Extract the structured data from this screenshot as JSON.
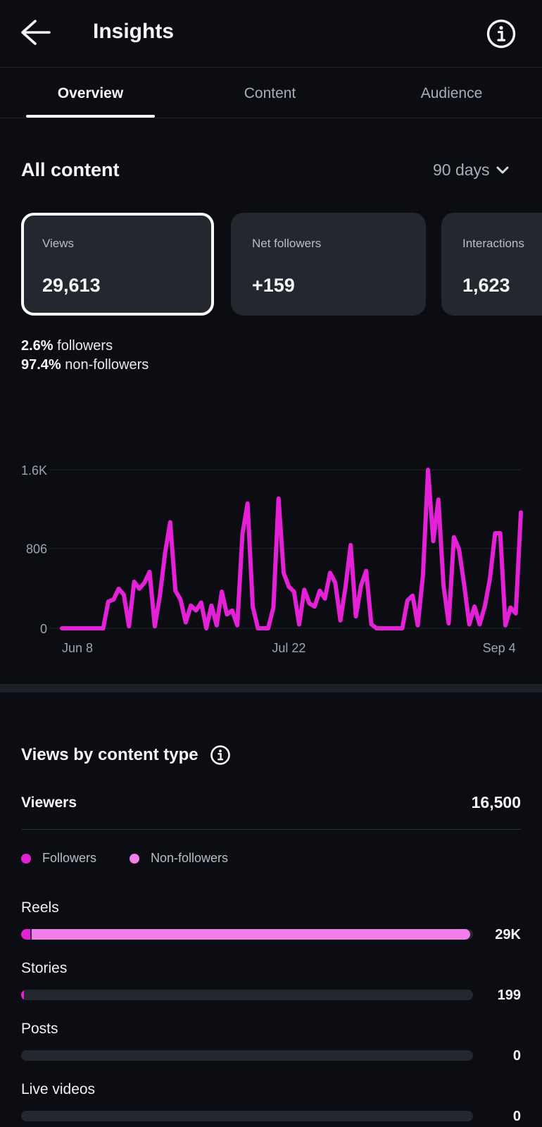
{
  "header": {
    "title": "Insights"
  },
  "tabs": [
    {
      "label": "Overview",
      "active": true
    },
    {
      "label": "Content",
      "active": false
    },
    {
      "label": "Audience",
      "active": false
    }
  ],
  "content": {
    "section_title": "All content",
    "range_label": "90 days"
  },
  "cards": [
    {
      "label": "Views",
      "value": "29,613",
      "selected": true
    },
    {
      "label": "Net followers",
      "value": "+159",
      "selected": false
    },
    {
      "label": "Interactions",
      "value": "1,623",
      "selected": false
    }
  ],
  "split": {
    "followers_pct": "2.6%",
    "followers_label": "followers",
    "nonfollowers_pct": "97.4%",
    "nonfollowers_label": "non-followers"
  },
  "chart_data": {
    "type": "line",
    "series_color": "#e521d8",
    "y_ticks": [
      "1.6K",
      "806",
      "0"
    ],
    "y_tick_values": [
      1600,
      806,
      0
    ],
    "ylim": [
      0,
      1600
    ],
    "x_tick_labels": [
      "Jun 8",
      "Jul 22",
      "Sep 4"
    ],
    "x_tick_index": [
      0,
      44,
      88
    ],
    "grid": true,
    "values": [
      0,
      0,
      0,
      0,
      0,
      0,
      0,
      0,
      0,
      270,
      290,
      400,
      340,
      20,
      470,
      400,
      460,
      570,
      20,
      330,
      760,
      1070,
      380,
      290,
      60,
      230,
      180,
      260,
      0,
      230,
      30,
      370,
      140,
      180,
      30,
      950,
      1260,
      220,
      0,
      0,
      0,
      210,
      1310,
      560,
      420,
      370,
      40,
      390,
      250,
      220,
      380,
      300,
      560,
      460,
      80,
      420,
      840,
      120,
      430,
      580,
      40,
      0,
      0,
      0,
      0,
      0,
      0,
      280,
      330,
      30,
      530,
      1600,
      880,
      1300,
      430,
      50,
      920,
      800,
      440,
      40,
      220,
      40,
      220,
      500,
      960,
      960,
      30,
      210,
      150,
      1170
    ]
  },
  "views_by_type": {
    "title": "Views by content type",
    "viewers_label": "Viewers",
    "viewers_value": "16,500",
    "legend": [
      {
        "label": "Followers",
        "color": "#e521d8"
      },
      {
        "label": "Non-followers",
        "color": "#f27ee9"
      }
    ],
    "rows": [
      {
        "label": "Reels",
        "value": "29K",
        "followers_fraction": 0.02,
        "nonfollowers_fraction": 0.98
      },
      {
        "label": "Stories",
        "value": "199",
        "followers_fraction": 0.005,
        "nonfollowers_fraction": 0.0
      },
      {
        "label": "Posts",
        "value": "0",
        "followers_fraction": 0.0,
        "nonfollowers_fraction": 0.0
      },
      {
        "label": "Live videos",
        "value": "0",
        "followers_fraction": 0.0,
        "nonfollowers_fraction": 0.0
      }
    ]
  }
}
